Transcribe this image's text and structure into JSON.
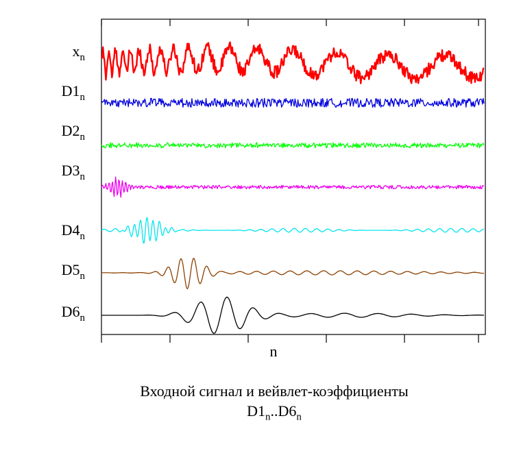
{
  "chart_data": {
    "type": "line",
    "title": "Входной сигнал и вейвлет-коэффициенты",
    "title_line2": {
      "base": "D1",
      "sub": "n",
      "sep": "..",
      "base2": "D6",
      "sub2": "n"
    },
    "xlabel": "n",
    "ylabel": "",
    "x_range": [
      0,
      512
    ],
    "series": [
      {
        "name": "x",
        "label_base": "x",
        "label_sub": "n",
        "color": "#ff0000",
        "description": "input signal: chirp-like oscillation decreasing in frequency plus noise"
      },
      {
        "name": "D1",
        "label_base": "D1",
        "label_sub": "n",
        "color": "#0000dd",
        "description": "finest-scale detail coefficients (noise)"
      },
      {
        "name": "D2",
        "label_base": "D2",
        "label_sub": "n",
        "color": "#00ff00",
        "description": "level-2 detail coefficients"
      },
      {
        "name": "D3",
        "label_base": "D3",
        "label_sub": "n",
        "color": "#ee00ee",
        "description": "level-3 detail coefficients, burst at start"
      },
      {
        "name": "D4",
        "label_base": "D4",
        "label_sub": "n",
        "color": "#00e5ee",
        "description": "level-4 detail coefficients, burst near n≈60"
      },
      {
        "name": "D5",
        "label_base": "D5",
        "label_sub": "n",
        "color": "#8b4000",
        "description": "level-5 detail coefficients, burst near n≈110"
      },
      {
        "name": "D6",
        "label_base": "D6",
        "label_sub": "n",
        "color": "#000000",
        "description": "level-6 detail coefficients, burst near n≈150"
      }
    ],
    "x_ticks": [
      "",
      "",
      "",
      "",
      "",
      ""
    ],
    "grid": false
  }
}
